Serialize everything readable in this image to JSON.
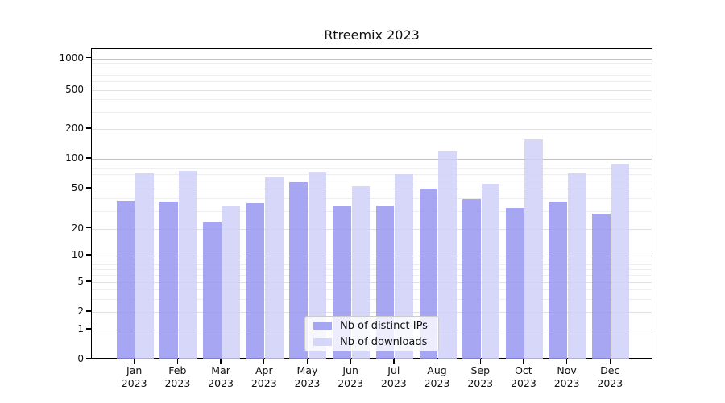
{
  "title": "Rtreemix 2023",
  "chart_data": {
    "type": "bar",
    "title": "Rtreemix 2023",
    "categories": [
      "Jan 2023",
      "Feb 2023",
      "Mar 2023",
      "Apr 2023",
      "May 2023",
      "Jun 2023",
      "Jul 2023",
      "Aug 2023",
      "Sep 2023",
      "Oct 2023",
      "Nov 2023",
      "Dec 2023"
    ],
    "series": [
      {
        "name": "Nb of distinct IPs",
        "color": "#9696f0",
        "values": [
          38,
          37,
          23,
          36,
          58,
          33,
          34,
          50,
          39,
          32,
          37,
          28
        ]
      },
      {
        "name": "Nb of downloads",
        "color": "#d0d0f8",
        "values": [
          72,
          76,
          33,
          65,
          73,
          53,
          70,
          120,
          56,
          158,
          71,
          90
        ]
      }
    ],
    "yscale": "symlog",
    "y_ticks": [
      0,
      1,
      2,
      5,
      10,
      20,
      50,
      100,
      200,
      500,
      1000
    ],
    "ylim": [
      0,
      1000
    ],
    "grid": true,
    "legend_position": "lower center"
  }
}
